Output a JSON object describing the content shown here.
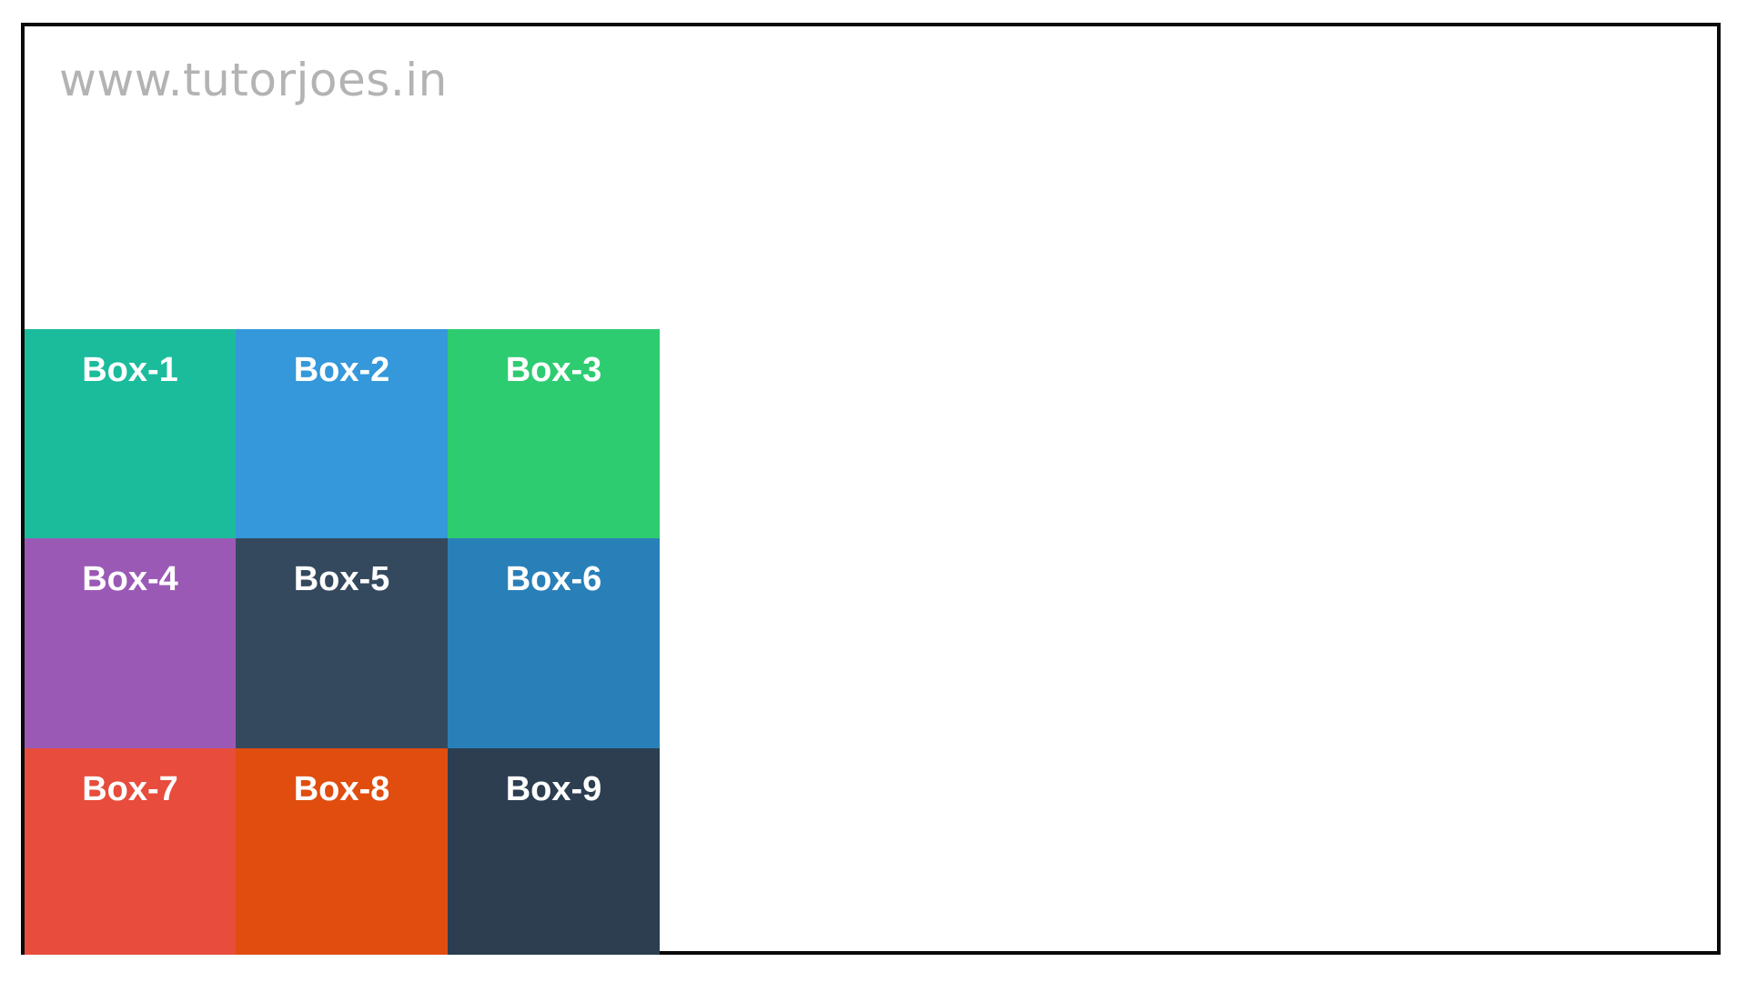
{
  "watermark": "www.tutorjoes.in",
  "boxes": [
    {
      "label": "Box-1",
      "color": "#1abc9c"
    },
    {
      "label": "Box-2",
      "color": "#3498db"
    },
    {
      "label": "Box-3",
      "color": "#2ecc71"
    },
    {
      "label": "Box-4",
      "color": "#9b59b6"
    },
    {
      "label": "Box-5",
      "color": "#34495e"
    },
    {
      "label": "Box-6",
      "color": "#2980b9"
    },
    {
      "label": "Box-7",
      "color": "#e74c3c"
    },
    {
      "label": "Box-8",
      "color": "#e04d0f"
    },
    {
      "label": "Box-9",
      "color": "#2c3e50"
    }
  ]
}
